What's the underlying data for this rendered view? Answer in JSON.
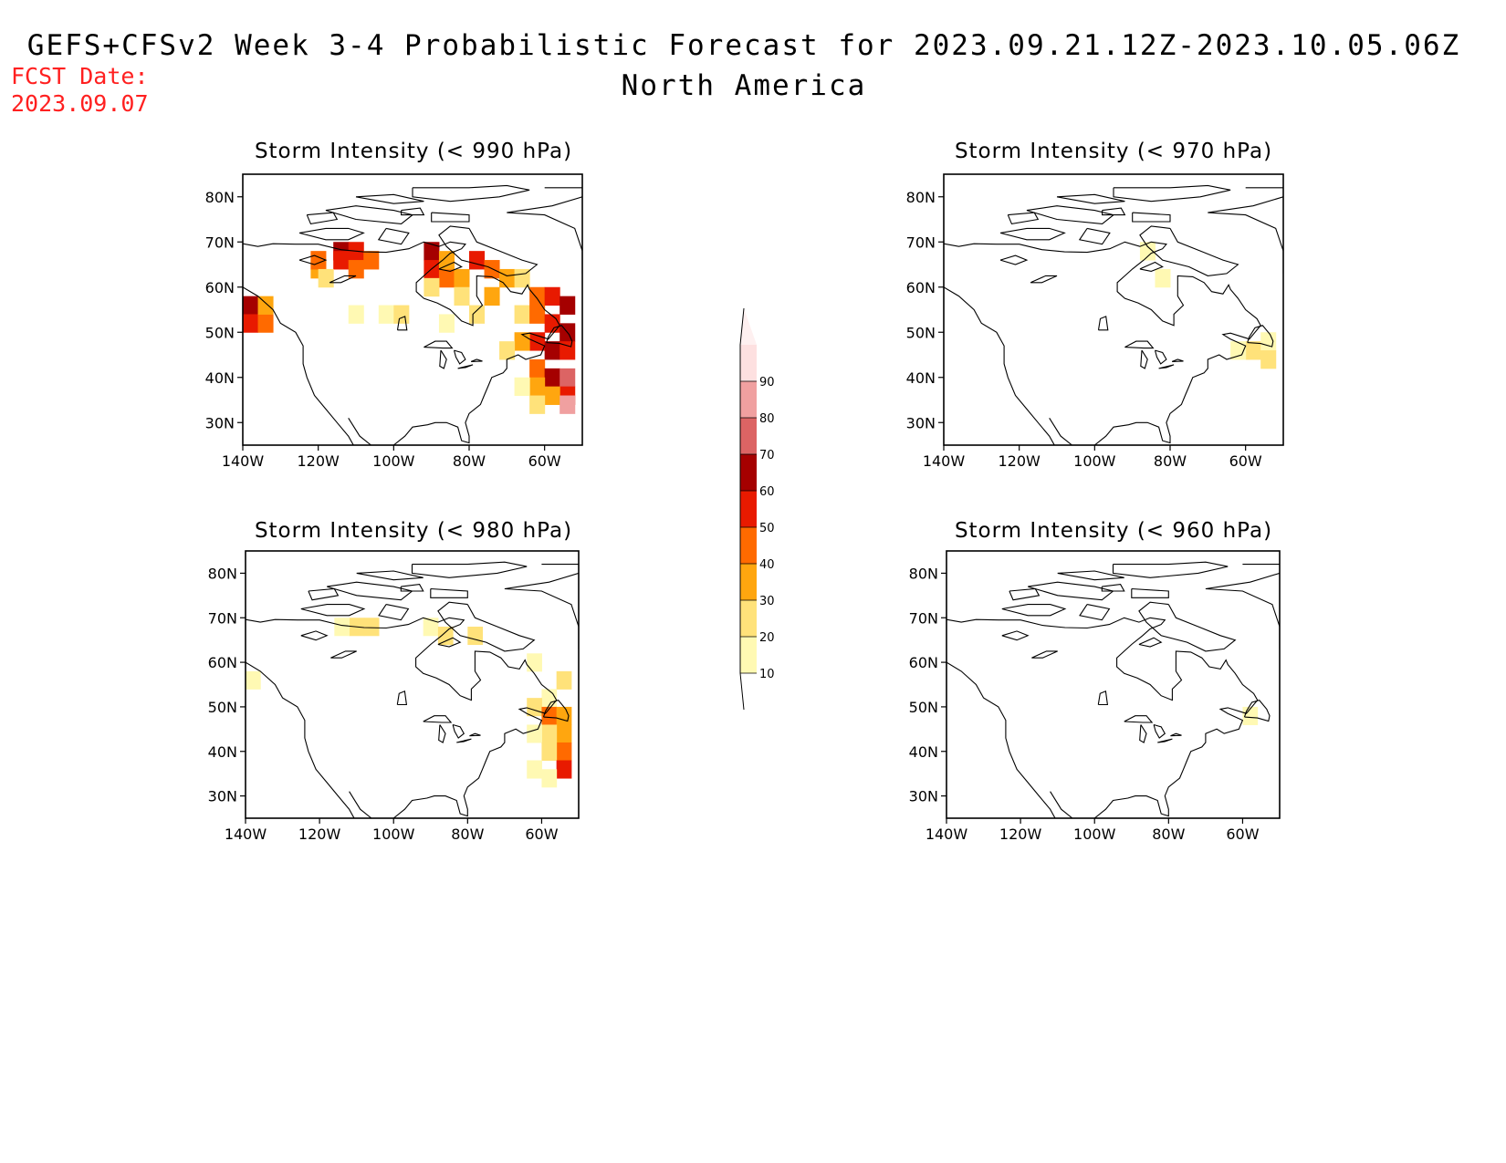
{
  "title": "GEFS+CFSv2 Week 3-4 Probabilistic Forecast for 2023.09.21.12Z-2023.10.05.06Z",
  "subtitle": "North America",
  "fcst_date_label": "FCST Date:",
  "fcst_date": "2023.09.07",
  "colorbar": {
    "levels": [
      "10",
      "20",
      "30",
      "40",
      "50",
      "60",
      "70",
      "80",
      "90"
    ],
    "colors": [
      "#fff9b3",
      "#ffe27a",
      "#ffa60f",
      "#ff6a00",
      "#e81a00",
      "#a50000",
      "#dc6464",
      "#f0a0a0",
      "#fde0e0"
    ]
  },
  "chart_data": [
    {
      "type": "heatmap",
      "title": "Storm Intensity (< 990 hPa)",
      "x_ticks": [
        "140W",
        "120W",
        "100W",
        "80W",
        "60W"
      ],
      "y_ticks": [
        "80N",
        "70N",
        "60N",
        "50N",
        "40N",
        "30N"
      ],
      "xlim": [
        -140,
        -50
      ],
      "ylim": [
        25,
        85
      ],
      "cells": [
        [
          -138,
          56,
          60
        ],
        [
          -138,
          52,
          50
        ],
        [
          -134,
          52,
          40
        ],
        [
          -134,
          56,
          30
        ],
        [
          -120,
          64,
          30
        ],
        [
          -120,
          66,
          40
        ],
        [
          -114,
          68,
          60
        ],
        [
          -114,
          66,
          50
        ],
        [
          -110,
          68,
          50
        ],
        [
          -110,
          64,
          40
        ],
        [
          -106,
          66,
          40
        ],
        [
          -118,
          62,
          20
        ],
        [
          -110,
          54,
          10
        ],
        [
          -102,
          54,
          10
        ],
        [
          -98,
          54,
          20
        ],
        [
          -90,
          68,
          60
        ],
        [
          -90,
          64,
          50
        ],
        [
          -86,
          62,
          40
        ],
        [
          -86,
          66,
          30
        ],
        [
          -82,
          62,
          30
        ],
        [
          -82,
          58,
          20
        ],
        [
          -90,
          60,
          20
        ],
        [
          -78,
          66,
          50
        ],
        [
          -74,
          64,
          40
        ],
        [
          -74,
          58,
          30
        ],
        [
          -78,
          54,
          20
        ],
        [
          -86,
          52,
          10
        ],
        [
          -70,
          62,
          30
        ],
        [
          -66,
          62,
          20
        ],
        [
          -62,
          58,
          40
        ],
        [
          -58,
          58,
          50
        ],
        [
          -54,
          56,
          60
        ],
        [
          -66,
          54,
          20
        ],
        [
          -62,
          54,
          40
        ],
        [
          -58,
          52,
          50
        ],
        [
          -54,
          50,
          60
        ],
        [
          -62,
          48,
          50
        ],
        [
          -58,
          46,
          60
        ],
        [
          -54,
          46,
          50
        ],
        [
          -66,
          48,
          30
        ],
        [
          -70,
          46,
          20
        ],
        [
          -62,
          42,
          40
        ],
        [
          -58,
          40,
          60
        ],
        [
          -54,
          40,
          70
        ],
        [
          -62,
          38,
          30
        ],
        [
          -54,
          36,
          50
        ],
        [
          -58,
          36,
          30
        ],
        [
          -66,
          38,
          10
        ],
        [
          -62,
          34,
          20
        ],
        [
          -54,
          34,
          80
        ]
      ]
    },
    {
      "type": "heatmap",
      "title": "Storm Intensity (< 970 hPa)",
      "x_ticks": [
        "140W",
        "120W",
        "100W",
        "80W",
        "60W"
      ],
      "y_ticks": [
        "80N",
        "70N",
        "60N",
        "50N",
        "40N",
        "30N"
      ],
      "xlim": [
        -140,
        -50
      ],
      "ylim": [
        25,
        85
      ],
      "cells": [
        [
          -86,
          68,
          10
        ],
        [
          -82,
          62,
          10
        ],
        [
          -58,
          46,
          20
        ],
        [
          -54,
          48,
          10
        ],
        [
          -54,
          44,
          20
        ],
        [
          -62,
          46,
          10
        ]
      ]
    },
    {
      "type": "heatmap",
      "title": "Storm Intensity (< 980 hPa)",
      "x_ticks": [
        "140W",
        "120W",
        "100W",
        "80W",
        "60W"
      ],
      "y_ticks": [
        "80N",
        "70N",
        "60N",
        "50N",
        "40N",
        "30N"
      ],
      "xlim": [
        -140,
        -50
      ],
      "ylim": [
        25,
        85
      ],
      "cells": [
        [
          -110,
          68,
          20
        ],
        [
          -106,
          68,
          20
        ],
        [
          -114,
          68,
          10
        ],
        [
          -90,
          68,
          10
        ],
        [
          -86,
          66,
          20
        ],
        [
          -78,
          66,
          20
        ],
        [
          -62,
          60,
          10
        ],
        [
          -138,
          56,
          10
        ],
        [
          -54,
          56,
          20
        ],
        [
          -58,
          52,
          10
        ],
        [
          -62,
          50,
          20
        ],
        [
          -58,
          48,
          40
        ],
        [
          -54,
          48,
          30
        ],
        [
          -54,
          44,
          30
        ],
        [
          -58,
          44,
          20
        ],
        [
          -62,
          44,
          10
        ],
        [
          -54,
          40,
          40
        ],
        [
          -58,
          40,
          20
        ],
        [
          -54,
          36,
          50
        ],
        [
          -62,
          36,
          10
        ],
        [
          -58,
          34,
          10
        ]
      ]
    },
    {
      "type": "heatmap",
      "title": "Storm Intensity (< 960 hPa)",
      "x_ticks": [
        "140W",
        "120W",
        "100W",
        "80W",
        "60W"
      ],
      "y_ticks": [
        "80N",
        "70N",
        "60N",
        "50N",
        "40N",
        "30N"
      ],
      "xlim": [
        -140,
        -50
      ],
      "ylim": [
        25,
        85
      ],
      "cells": [
        [
          -58,
          48,
          10
        ]
      ]
    }
  ]
}
